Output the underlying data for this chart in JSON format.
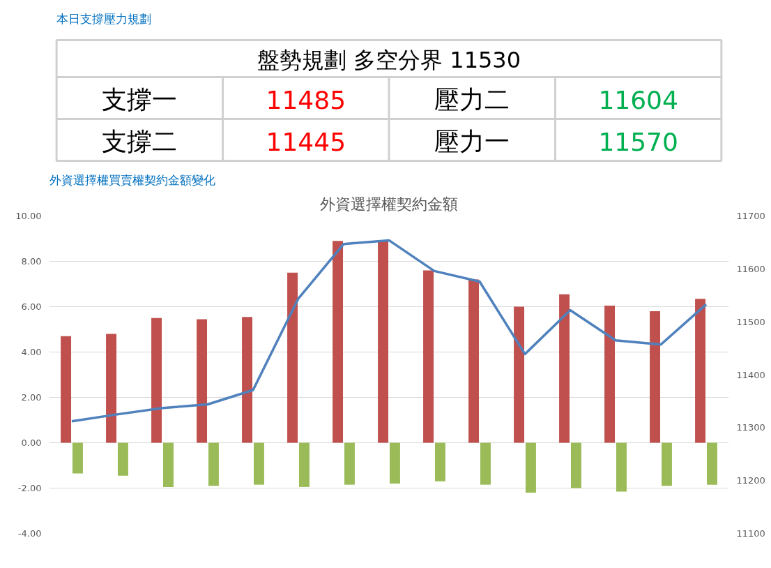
{
  "chart_data": [
    {
      "type": "other",
      "title": "本日支撐壓力規劃",
      "annotations": [
        "盤勢規劃 多空分界 11530",
        "支撐一",
        "11485",
        "壓力二",
        "11604",
        "支撐二",
        "11445",
        "壓力一",
        "11570"
      ],
      "colors": [
        "#000000",
        "#000000",
        "#ff0000",
        "#000000",
        "#00b050",
        "#000000",
        "#ff0000",
        "#000000",
        "#00b050"
      ]
    },
    {
      "type": "bar",
      "title": "外資選擇權契約金額",
      "subtitle": "外資選擇權買賣權契約金額變化",
      "categories": [
        null,
        null,
        null,
        null,
        null,
        null,
        null,
        null,
        null,
        null,
        null,
        null,
        null,
        null,
        null
      ],
      "series": [
        {
          "type": "bar",
          "color": "#c0504d",
          "values": [
            4.7,
            4.8,
            5.5,
            5.45,
            5.55,
            7.5,
            8.9,
            8.9,
            7.6,
            7.2,
            6.0,
            6.55,
            6.05,
            5.8,
            6.35
          ]
        },
        {
          "type": "bar",
          "color": "#9bbb59",
          "values": [
            -1.35,
            -1.45,
            -1.95,
            -1.9,
            -1.85,
            -1.95,
            -1.85,
            -1.8,
            -1.7,
            -1.85,
            -2.2,
            -2.0,
            -2.15,
            -1.9,
            -1.85
          ]
        },
        {
          "type": "line",
          "axis": "y2",
          "color": "#4f81bd",
          "values": [
            11312,
            11325,
            11337,
            11344,
            11371,
            11544,
            11647,
            11654,
            11596,
            11576,
            11439,
            11522,
            11465,
            11457,
            11533
          ]
        }
      ],
      "ylim": [
        -4,
        10
      ],
      "yticks": [
        {
          "value": -4,
          "label": "-4.00"
        },
        {
          "value": -2,
          "label": "-2.00"
        },
        {
          "value": 0,
          "label": "0.00"
        },
        {
          "value": 2,
          "label": "2.00"
        },
        {
          "value": 4,
          "label": "4.00"
        },
        {
          "value": 6,
          "label": "6.00"
        },
        {
          "value": 8,
          "label": "8.00"
        },
        {
          "value": 10,
          "label": "10.00"
        }
      ],
      "y2lim": [
        11100,
        11700
      ],
      "y2ticks": [
        11100,
        11200,
        11300,
        11400,
        11500,
        11600,
        11700
      ],
      "grid": "y",
      "marker": "none",
      "line_style": "solid"
    }
  ]
}
